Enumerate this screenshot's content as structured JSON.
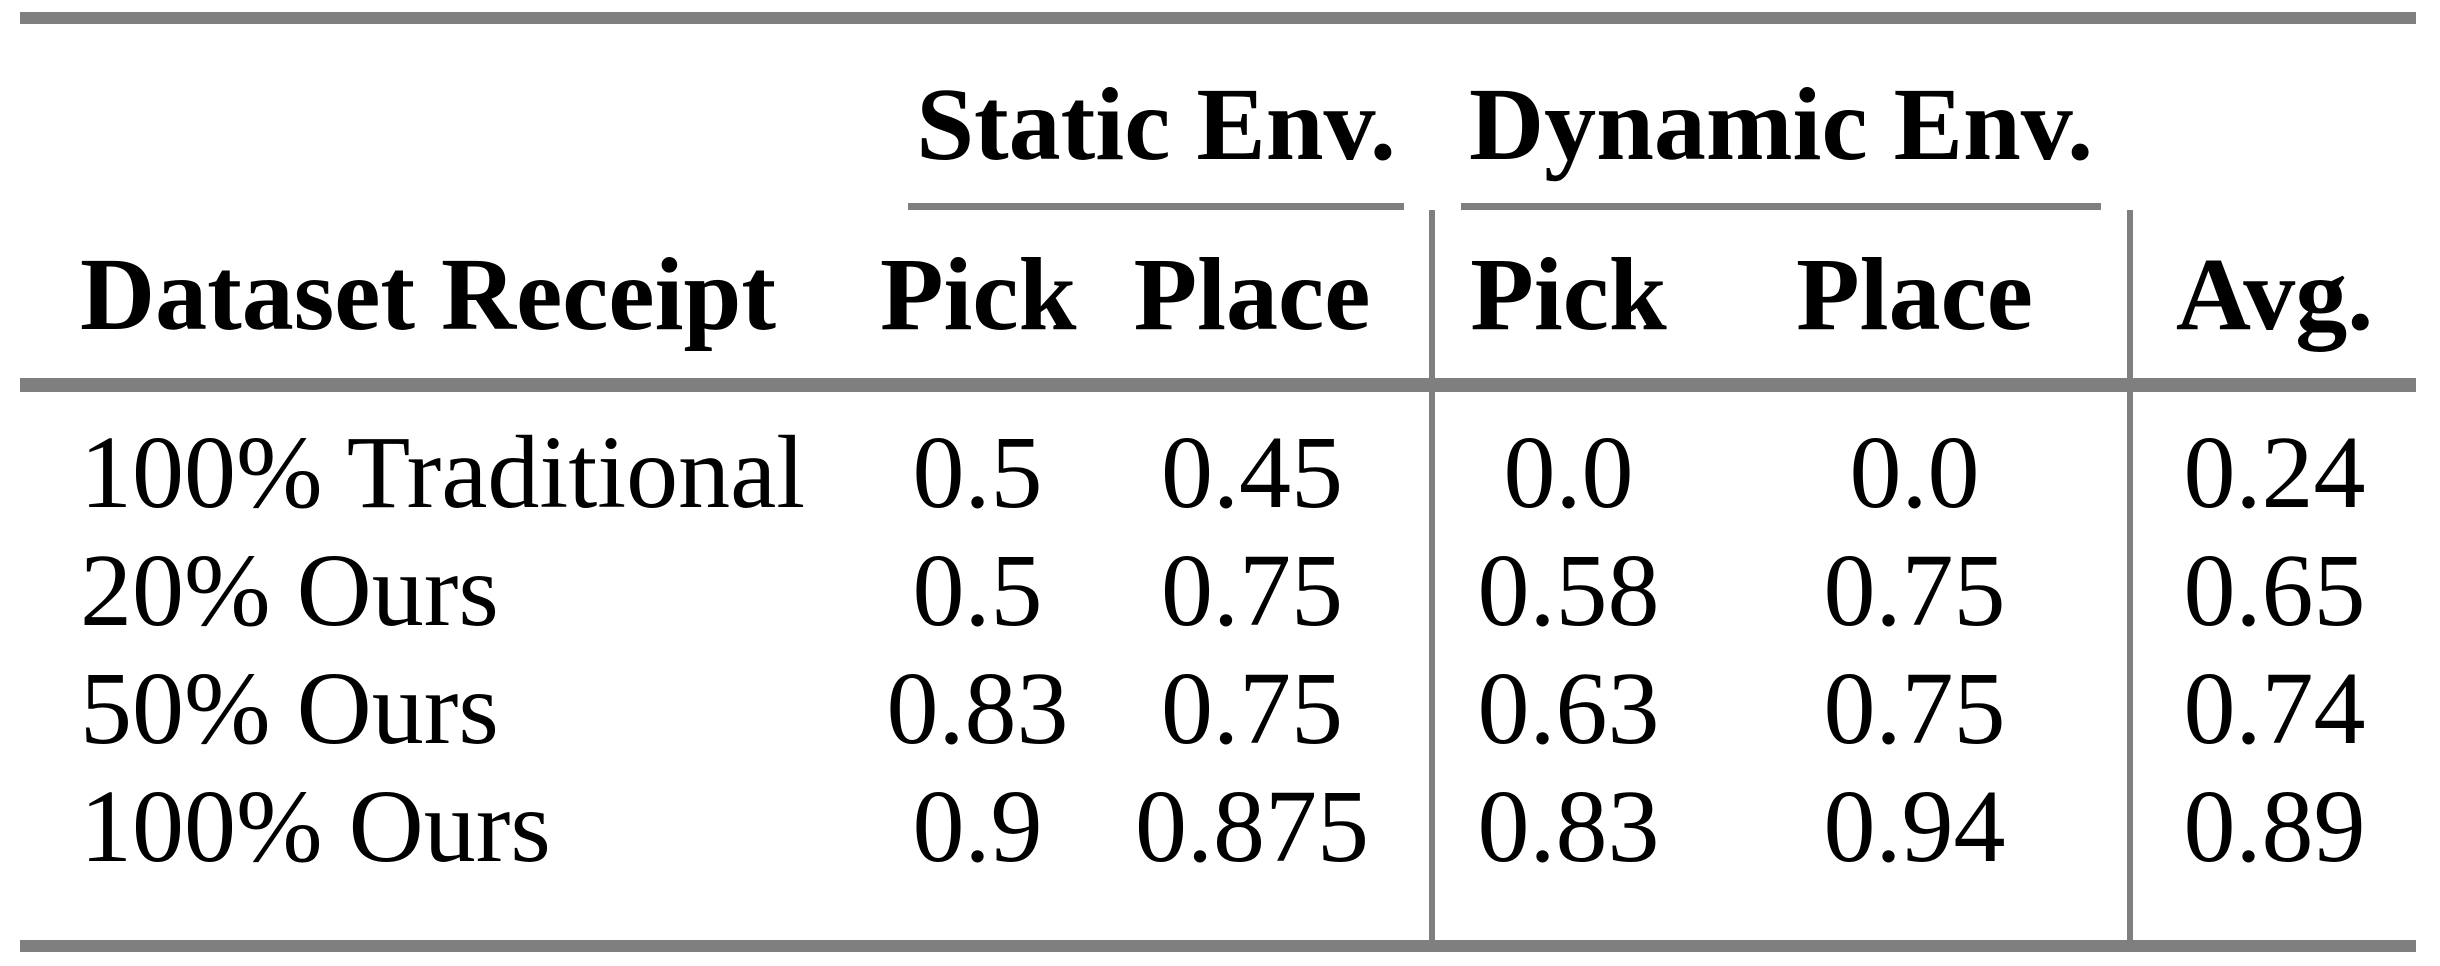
{
  "colors": {
    "rule_gray": "#7f7f7f",
    "text": "#000000",
    "background": "#ffffff"
  },
  "table": {
    "group_headers": [
      {
        "label": "Static Env."
      },
      {
        "label": "Dynamic Env."
      }
    ],
    "columns": [
      "Dataset Receipt",
      "Pick",
      "Place",
      "Pick",
      "Place",
      "Avg."
    ],
    "rows": [
      {
        "label": "100% Traditional",
        "values": [
          "0.5",
          "0.45",
          "0.0",
          "0.0",
          "0.24"
        ]
      },
      {
        "label": "20% Ours",
        "values": [
          "0.5",
          "0.75",
          "0.58",
          "0.75",
          "0.65"
        ]
      },
      {
        "label": "50% Ours",
        "values": [
          "0.83",
          "0.75",
          "0.63",
          "0.75",
          "0.74"
        ]
      },
      {
        "label": "100% Ours",
        "values": [
          "0.9",
          "0.875",
          "0.83",
          "0.94",
          "0.89"
        ]
      }
    ]
  }
}
